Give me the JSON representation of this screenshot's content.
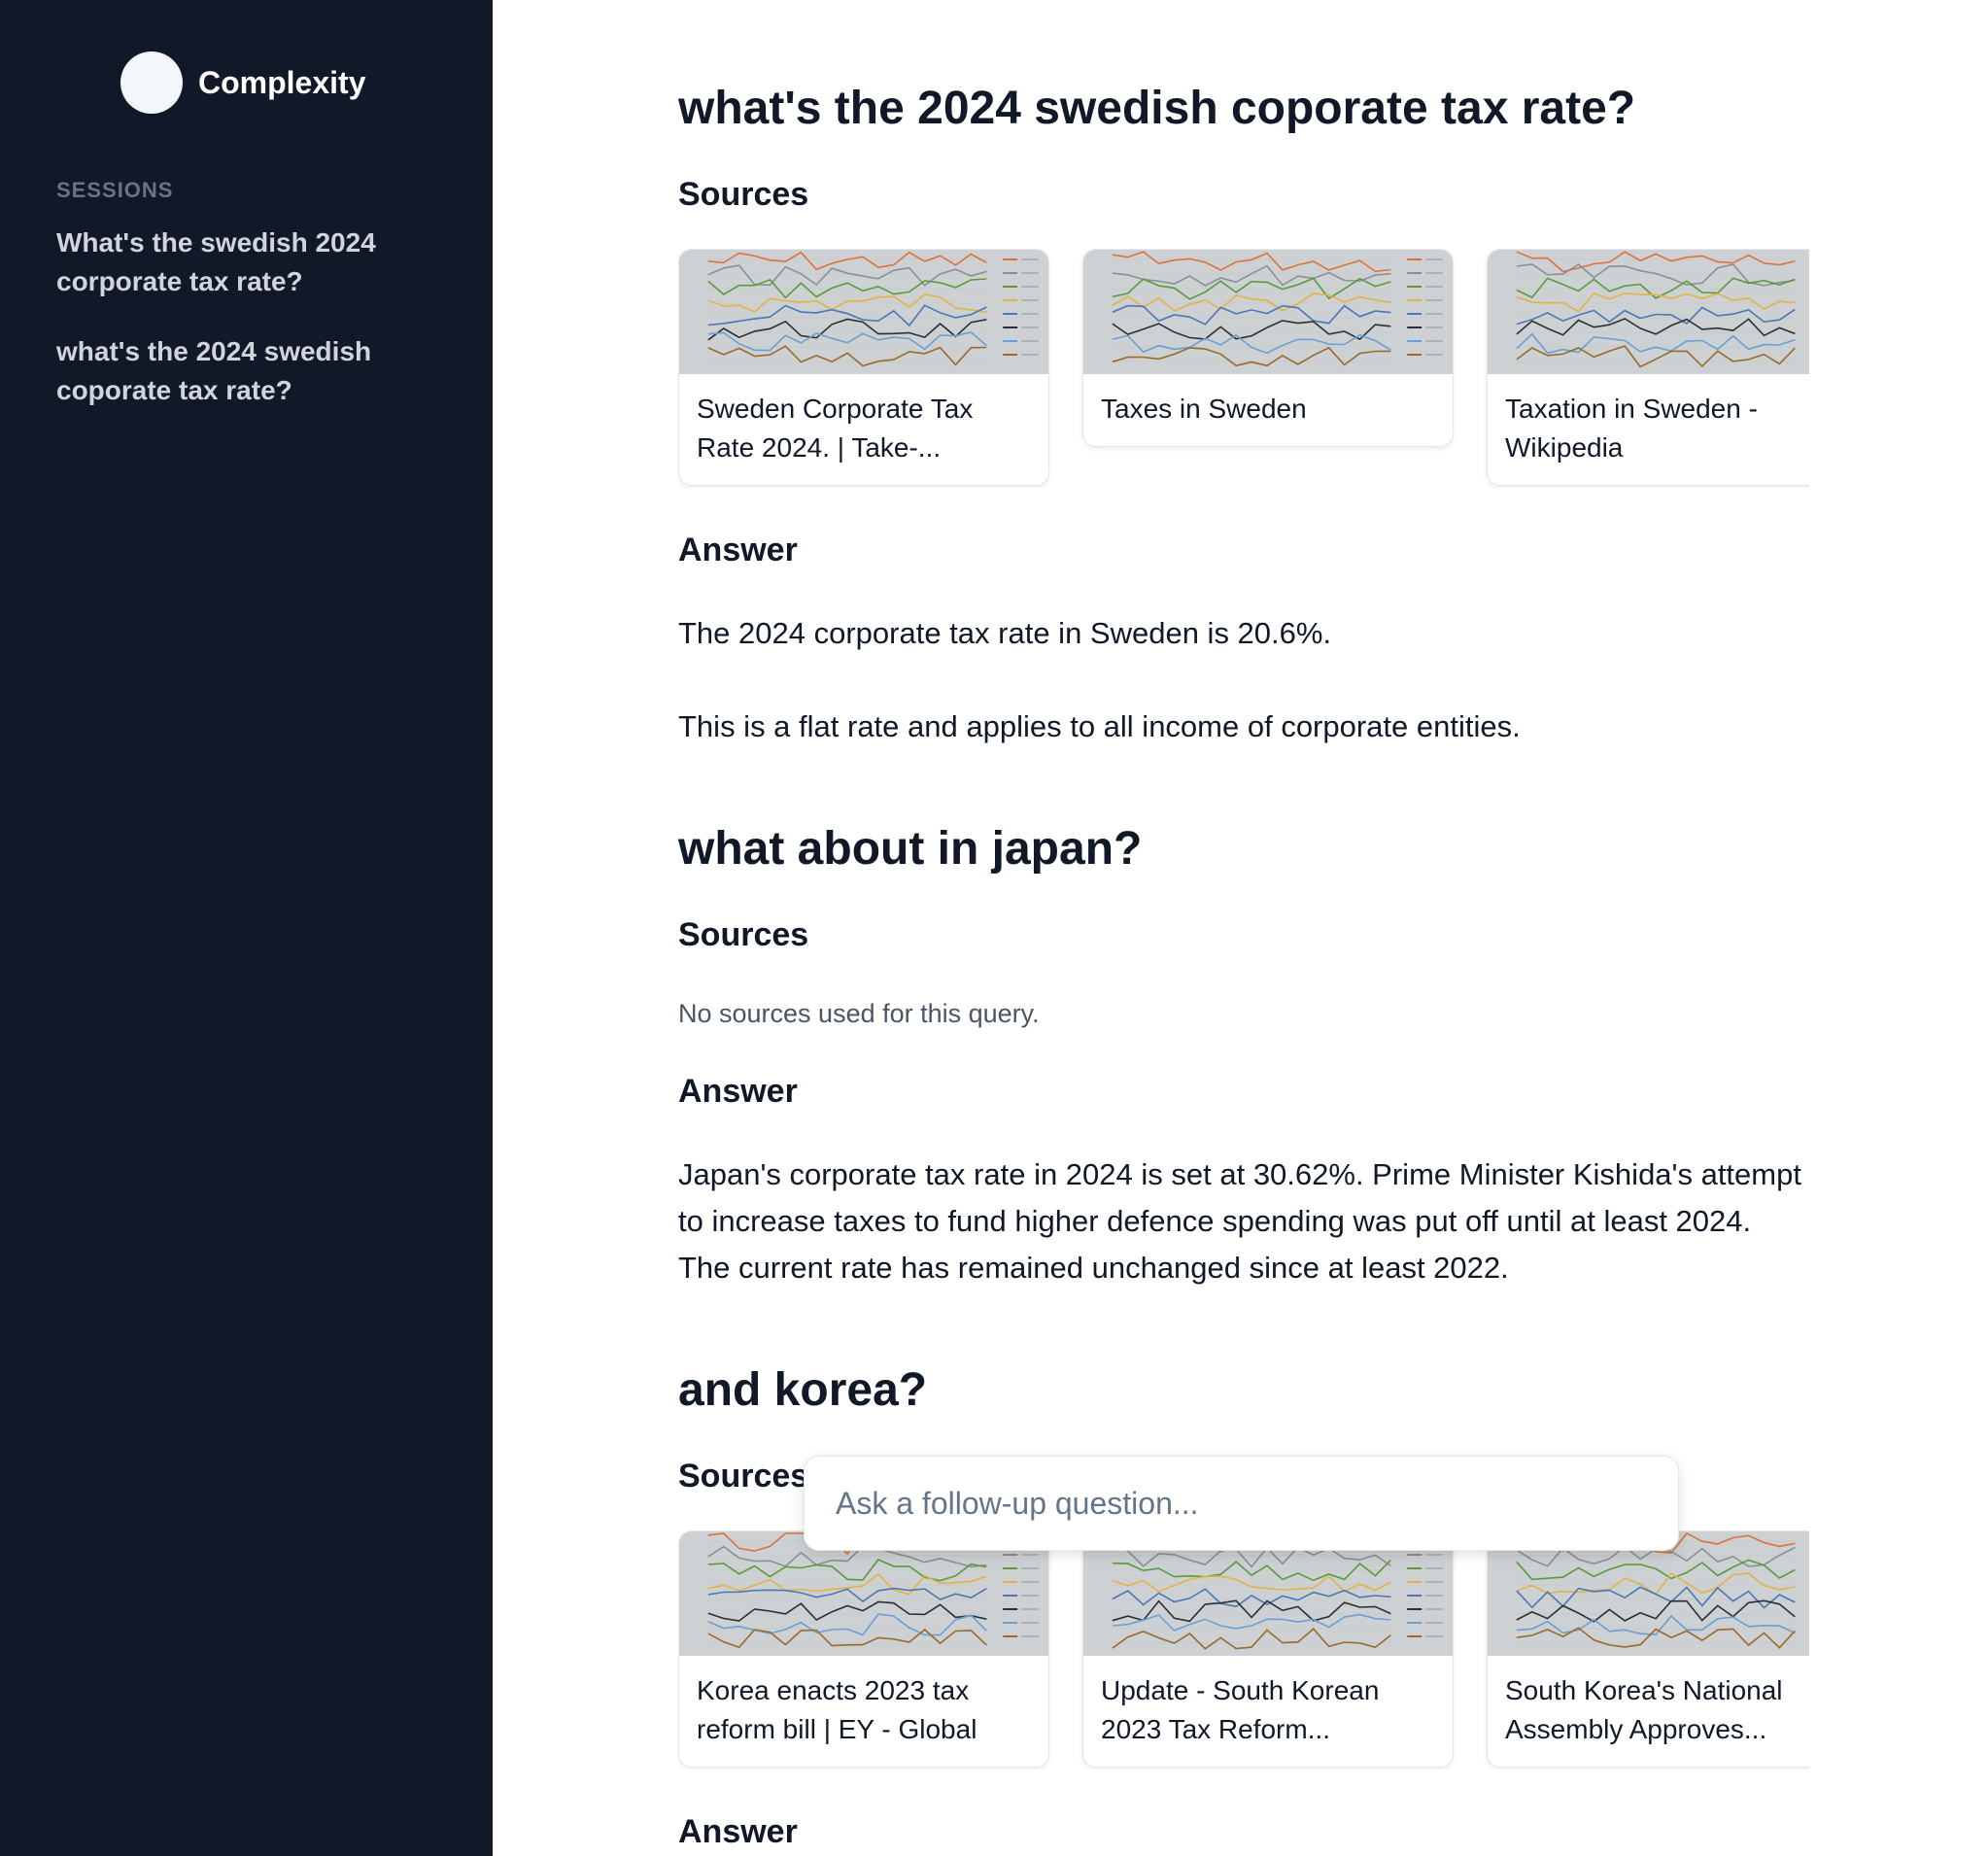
{
  "app": {
    "name": "Complexity"
  },
  "sidebar": {
    "sessions_label": "SESSIONS",
    "sessions": [
      "What's the swedish 2024 corporate tax rate?",
      "what's the 2024 swedish coporate tax rate?"
    ]
  },
  "thread": [
    {
      "question": "what's the 2024 swedish coporate tax rate?",
      "sources_label": "Sources",
      "sources": [
        "Sweden Corporate Tax Rate 2024. | Take-...",
        "Taxes in Sweden",
        "Taxation in Sweden - Wikipedia"
      ],
      "answer_label": "Answer",
      "answer": [
        "The 2024 corporate tax rate in Sweden is 20.6%.",
        "This is a flat rate and applies to all income of corporate entities."
      ]
    },
    {
      "question": "what about in japan?",
      "sources_label": "Sources",
      "no_sources": "No sources used for this query.",
      "answer_label": "Answer",
      "answer": [
        "Japan's corporate tax rate in 2024 is set at 30.62%. Prime Minister Kishida's attempt to increase taxes to fund higher defence spending was put off until at least 2024. The current rate has remained unchanged since at least 2022."
      ]
    },
    {
      "question": "and korea?",
      "sources_label": "Sources",
      "sources": [
        "Korea enacts 2023 tax reform bill | EY - Global",
        "Update - South Korean 2023 Tax Reform...",
        "South Korea's National Assembly Approves..."
      ],
      "answer_label": "Answer"
    }
  ],
  "follow_up": {
    "placeholder": "Ask a follow-up question..."
  }
}
